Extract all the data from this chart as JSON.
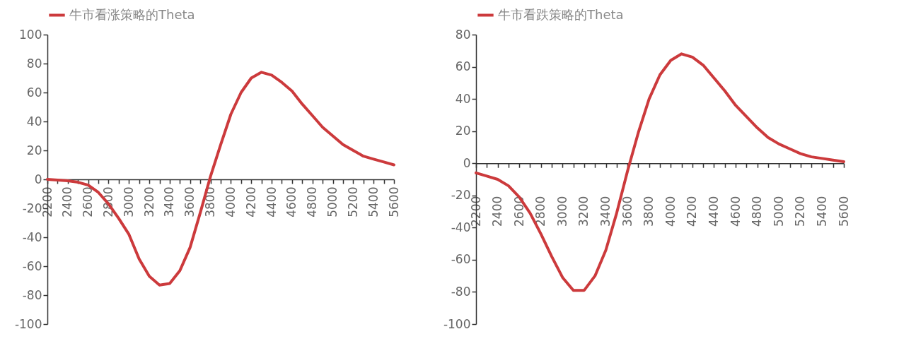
{
  "chart_data": [
    {
      "type": "line",
      "legend": "top",
      "grid": false,
      "x": [
        2200,
        2300,
        2400,
        2500,
        2600,
        2700,
        2800,
        2900,
        3000,
        3100,
        3200,
        3300,
        3400,
        3500,
        3600,
        3700,
        3800,
        3900,
        4000,
        4100,
        4200,
        4300,
        4400,
        4500,
        4600,
        4700,
        4800,
        4900,
        5000,
        5100,
        5200,
        5300,
        5400,
        5500,
        5600
      ],
      "series": [
        {
          "name": "牛市看涨策略的Theta",
          "color": "#cc3a3c",
          "values": [
            0,
            -0.5,
            -1,
            -2,
            -4,
            -9,
            -17,
            -27,
            -38,
            -55,
            -67,
            -73,
            -72,
            -63,
            -47,
            -23,
            2,
            24,
            45,
            60,
            70,
            74,
            72,
            67,
            61,
            52,
            44,
            36,
            30,
            24,
            20,
            16,
            14,
            12,
            10
          ]
        }
      ],
      "xlim": [
        2200,
        5600
      ],
      "xticks": [
        2200,
        {
          "value": 2300,
          "label": null
        },
        2400,
        {
          "value": 2500,
          "label": null
        },
        2600,
        {
          "value": 2700,
          "label": null
        },
        2800,
        {
          "value": 2900,
          "label": null
        },
        3000,
        {
          "value": 3100,
          "label": null
        },
        3200,
        {
          "value": 3300,
          "label": null
        },
        3400,
        {
          "value": 3500,
          "label": null
        },
        3600,
        {
          "value": 3700,
          "label": null
        },
        3800,
        {
          "value": 3900,
          "label": null
        },
        4000,
        {
          "value": 4100,
          "label": null
        },
        4200,
        {
          "value": 4300,
          "label": null
        },
        4400,
        {
          "value": 4500,
          "label": null
        },
        4600,
        {
          "value": 4700,
          "label": null
        },
        4800,
        {
          "value": 4900,
          "label": null
        },
        5000,
        {
          "value": 5100,
          "label": null
        },
        5200,
        {
          "value": 5300,
          "label": null
        },
        5400,
        {
          "value": 5500,
          "label": null
        },
        5600
      ],
      "ylim": [
        -100,
        100
      ],
      "yticks": [
        -100,
        -80,
        -60,
        -40,
        -20,
        0,
        20,
        40,
        60,
        80,
        100
      ]
    },
    {
      "type": "line",
      "legend": "top",
      "x": [
        2200,
        2300,
        2400,
        2500,
        2600,
        2700,
        2800,
        2900,
        3000,
        3100,
        3200,
        3300,
        3400,
        3500,
        3600,
        3700,
        3800,
        3900,
        4000,
        4100,
        4200,
        4300,
        4400,
        4500,
        4600,
        4700,
        4800,
        4900,
        5000,
        5100,
        5200,
        5300,
        5400,
        5500,
        5600
      ],
      "series": [
        {
          "name": "牛市看跌策略的Theta",
          "color": "#cc3a3c",
          "values": [
            -6,
            -8,
            -10,
            -14,
            -21,
            -31,
            -44,
            -58,
            -71,
            -79,
            -79,
            -70,
            -54,
            -31,
            -5,
            19,
            40,
            55,
            64,
            68,
            66,
            61,
            53,
            45,
            36,
            29,
            22,
            16,
            12,
            9,
            6,
            4,
            3,
            2,
            1
          ]
        }
      ],
      "xlim": [
        2200,
        5600
      ],
      "xticks": [
        2200,
        {
          "value": 2300,
          "label": null
        },
        2400,
        {
          "value": 2500,
          "label": null
        },
        2600,
        {
          "value": 2700,
          "label": null
        },
        2800,
        {
          "value": 2900,
          "label": null
        },
        3000,
        {
          "value": 3100,
          "label": null
        },
        3200,
        {
          "value": 3300,
          "label": null
        },
        3400,
        {
          "value": 3500,
          "label": null
        },
        3600,
        {
          "value": 3700,
          "label": null
        },
        3800,
        {
          "value": 3900,
          "label": null
        },
        4000,
        {
          "value": 4100,
          "label": null
        },
        4200,
        {
          "value": 4300,
          "label": null
        },
        4400,
        {
          "value": 4500,
          "label": null
        },
        4600,
        {
          "value": 4700,
          "label": null
        },
        4800,
        {
          "value": 4900,
          "label": null
        },
        5000,
        {
          "value": 5100,
          "label": null
        },
        5200,
        {
          "value": 5300,
          "label": null
        },
        5400,
        {
          "value": 5500,
          "label": null
        },
        5600
      ],
      "ylim": [
        -100,
        80
      ],
      "yticks": [
        -100,
        -80,
        -60,
        -40,
        -20,
        0,
        20,
        40,
        60,
        80
      ]
    }
  ]
}
